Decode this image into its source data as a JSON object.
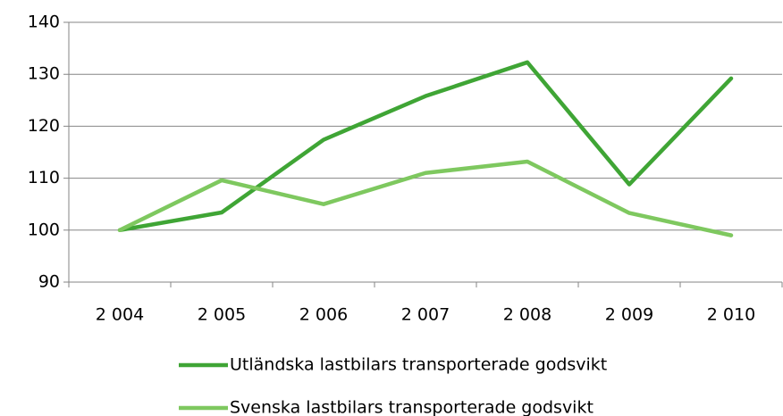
{
  "chart_data": {
    "type": "line",
    "categories": [
      "2 004",
      "2 005",
      "2 006",
      "2 007",
      "2 008",
      "2 009",
      "2 010"
    ],
    "series": [
      {
        "name": "Utländska lastbilars transporterade godsvikt",
        "color": "#3fa535",
        "values": [
          100,
          103.4,
          117.4,
          125.8,
          132.3,
          108.8,
          129.2
        ]
      },
      {
        "name": "Svenska lastbilars transporterade godsvikt",
        "color": "#7ec85f",
        "values": [
          100,
          109.6,
          105,
          111,
          113.2,
          103.3,
          99
        ]
      }
    ],
    "ylim": [
      90,
      140
    ],
    "yticks": [
      90,
      100,
      110,
      120,
      130,
      140
    ],
    "grid": true,
    "legend": "bottom"
  }
}
